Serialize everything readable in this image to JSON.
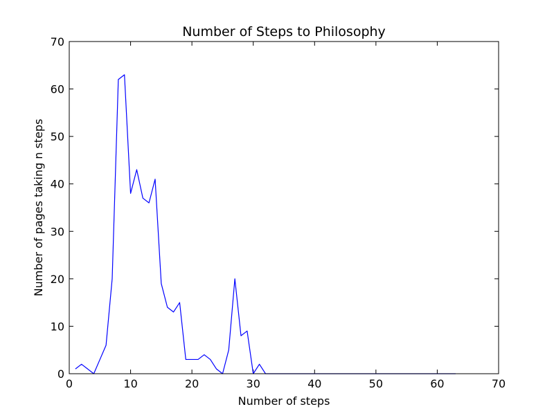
{
  "chart_data": {
    "type": "line",
    "title": "Number of Steps to Philosophy",
    "xlabel": "Number of steps",
    "ylabel": "Number of pages taking n steps",
    "xlim": [
      0,
      70
    ],
    "ylim": [
      0,
      70
    ],
    "xticks": [
      0,
      10,
      20,
      30,
      40,
      50,
      60,
      70
    ],
    "yticks": [
      0,
      10,
      20,
      30,
      40,
      50,
      60,
      70
    ],
    "grid": false,
    "series": [
      {
        "color": "#0000ff",
        "x": [
          1,
          2,
          3,
          4,
          5,
          6,
          7,
          8,
          9,
          10,
          11,
          12,
          13,
          14,
          15,
          16,
          17,
          18,
          19,
          20,
          21,
          22,
          23,
          24,
          25,
          26,
          27,
          28,
          29,
          30,
          31,
          32,
          33,
          34,
          35,
          36,
          37,
          38,
          39,
          40,
          41,
          42,
          43,
          44,
          45,
          46,
          47,
          48,
          49,
          50,
          51,
          52,
          53,
          54,
          55,
          56,
          57,
          58,
          59,
          60,
          61,
          62,
          63
        ],
        "y": [
          1,
          2,
          1,
          0,
          3,
          6,
          20,
          62,
          63,
          38,
          43,
          37,
          36,
          41,
          19,
          14,
          13,
          15,
          3,
          3,
          3,
          4,
          3,
          1,
          0,
          5,
          20,
          8,
          9,
          0,
          2,
          0,
          0,
          0,
          0,
          0,
          0,
          0,
          0,
          0,
          0,
          0,
          0,
          0,
          0,
          0,
          0,
          0,
          0,
          0,
          0,
          0,
          0,
          0,
          0,
          0,
          0,
          0,
          0,
          0,
          0,
          0,
          0
        ]
      }
    ]
  }
}
